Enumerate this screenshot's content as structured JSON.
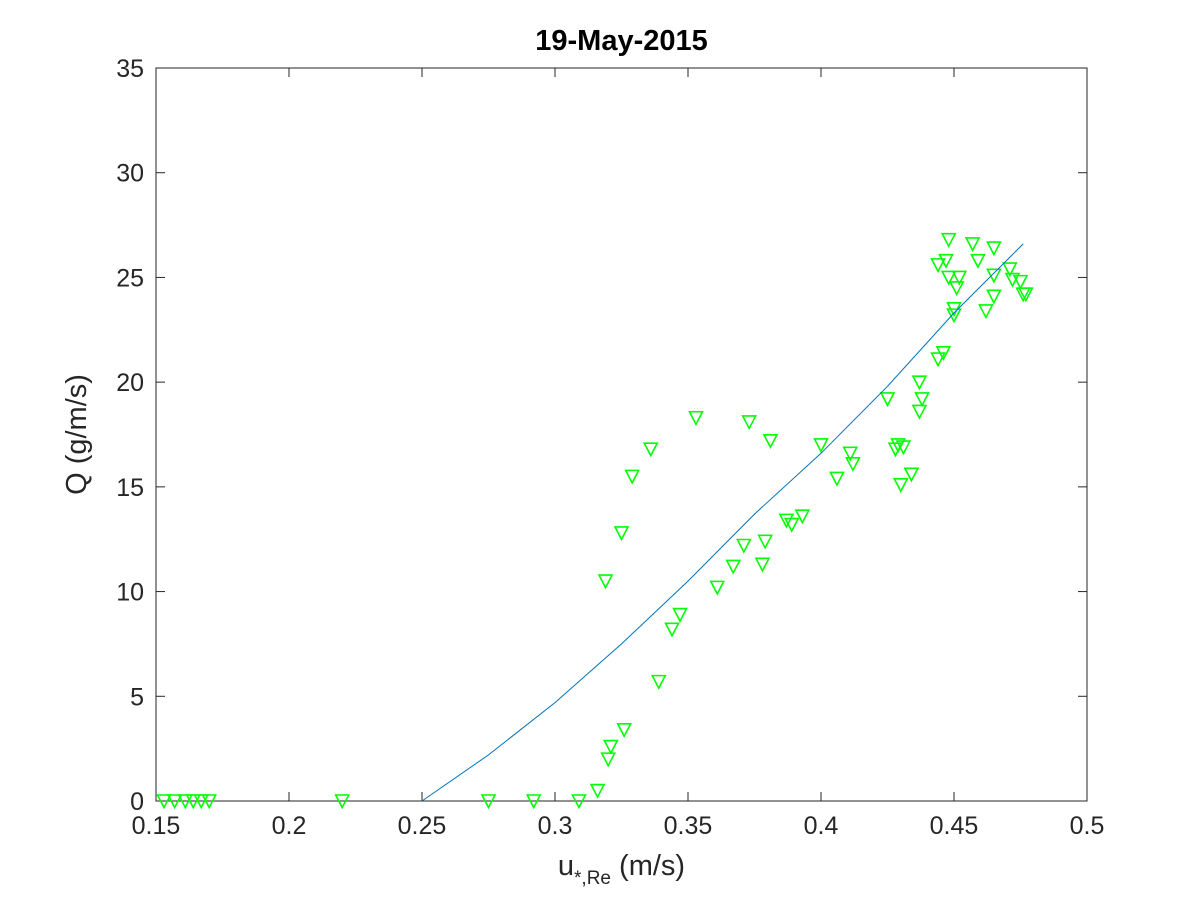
{
  "chart_data": {
    "type": "scatter",
    "title": "19-May-2015",
    "xlabel": {
      "main": "u",
      "subscript": "*,Re",
      "unit": " (m/s)"
    },
    "ylabel": "Q (g/m/s)",
    "xlim": [
      0.15,
      0.5
    ],
    "ylim": [
      0,
      35
    ],
    "xticks": [
      0.15,
      0.2,
      0.25,
      0.3,
      0.35,
      0.4,
      0.45,
      0.5
    ],
    "xtick_labels": [
      "0.15",
      "0.2",
      "0.25",
      "0.3",
      "0.35",
      "0.4",
      "0.45",
      "0.5"
    ],
    "yticks": [
      0,
      5,
      10,
      15,
      20,
      25,
      30,
      35
    ],
    "ytick_labels": [
      "0",
      "5",
      "10",
      "15",
      "20",
      "25",
      "30",
      "35"
    ],
    "grid": false,
    "series": [
      {
        "marker": "downward-triangle",
        "color": "#00ff00",
        "points": [
          [
            0.153,
            0.0
          ],
          [
            0.157,
            0.0
          ],
          [
            0.161,
            0.0
          ],
          [
            0.164,
            0.0
          ],
          [
            0.167,
            0.0
          ],
          [
            0.17,
            0.0
          ],
          [
            0.22,
            0.0
          ],
          [
            0.275,
            0.0
          ],
          [
            0.292,
            0.0
          ],
          [
            0.309,
            0.0
          ],
          [
            0.316,
            0.5
          ],
          [
            0.319,
            10.5
          ],
          [
            0.32,
            2.0
          ],
          [
            0.321,
            2.6
          ],
          [
            0.325,
            12.8
          ],
          [
            0.326,
            3.4
          ],
          [
            0.329,
            15.5
          ],
          [
            0.336,
            16.8
          ],
          [
            0.339,
            5.7
          ],
          [
            0.344,
            8.2
          ],
          [
            0.347,
            8.9
          ],
          [
            0.353,
            18.3
          ],
          [
            0.361,
            10.2
          ],
          [
            0.367,
            11.2
          ],
          [
            0.371,
            12.2
          ],
          [
            0.373,
            18.1
          ],
          [
            0.378,
            11.3
          ],
          [
            0.379,
            12.4
          ],
          [
            0.381,
            17.2
          ],
          [
            0.387,
            13.4
          ],
          [
            0.389,
            13.2
          ],
          [
            0.393,
            13.6
          ],
          [
            0.4,
            17.0
          ],
          [
            0.406,
            15.4
          ],
          [
            0.411,
            16.6
          ],
          [
            0.412,
            16.1
          ],
          [
            0.425,
            19.2
          ],
          [
            0.428,
            16.8
          ],
          [
            0.429,
            17.0
          ],
          [
            0.43,
            15.1
          ],
          [
            0.431,
            16.9
          ],
          [
            0.434,
            15.6
          ],
          [
            0.437,
            18.6
          ],
          [
            0.437,
            20.0
          ],
          [
            0.438,
            19.2
          ],
          [
            0.444,
            21.1
          ],
          [
            0.444,
            25.6
          ],
          [
            0.446,
            21.4
          ],
          [
            0.447,
            25.8
          ],
          [
            0.448,
            26.8
          ],
          [
            0.448,
            25.0
          ],
          [
            0.45,
            23.2
          ],
          [
            0.45,
            23.5
          ],
          [
            0.451,
            24.5
          ],
          [
            0.452,
            25.0
          ],
          [
            0.457,
            26.6
          ],
          [
            0.459,
            25.8
          ],
          [
            0.462,
            23.4
          ],
          [
            0.465,
            26.4
          ],
          [
            0.465,
            24.1
          ],
          [
            0.465,
            25.1
          ],
          [
            0.471,
            25.4
          ],
          [
            0.472,
            24.9
          ],
          [
            0.475,
            24.8
          ],
          [
            0.476,
            24.2
          ],
          [
            0.477,
            24.2
          ]
        ]
      },
      {
        "marker": "none",
        "line": "fit-curve",
        "color": "#0072bd",
        "x": [
          0.25,
          0.275,
          0.3,
          0.325,
          0.35,
          0.375,
          0.4,
          0.425,
          0.45,
          0.476
        ],
        "y": [
          0.0,
          2.2,
          4.7,
          7.5,
          10.5,
          13.7,
          16.6,
          19.8,
          23.3,
          26.6
        ]
      }
    ]
  }
}
